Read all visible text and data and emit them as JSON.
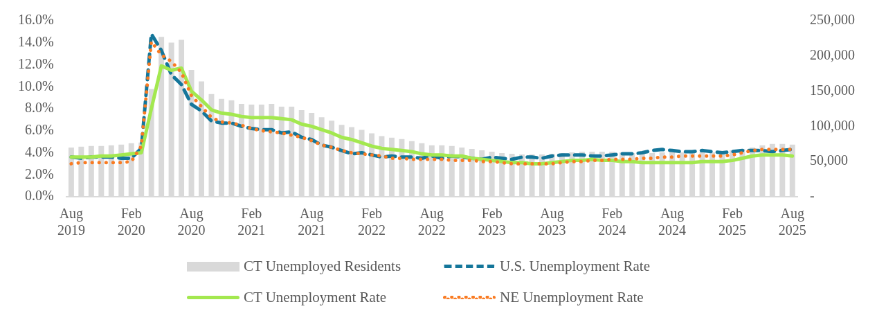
{
  "chart_data": {
    "type": "bar",
    "categories": [
      "Aug 2019",
      null,
      null,
      null,
      null,
      null,
      "Feb 2020",
      null,
      null,
      null,
      null,
      null,
      "Aug 2020",
      null,
      null,
      null,
      null,
      null,
      "Feb 2021",
      null,
      null,
      null,
      null,
      null,
      "Aug 2021",
      null,
      null,
      null,
      null,
      null,
      "Feb 2022",
      null,
      null,
      null,
      null,
      null,
      "Aug 2022",
      null,
      null,
      null,
      null,
      null,
      "Feb 2023",
      null,
      null,
      null,
      null,
      null,
      "Aug 2023",
      null,
      null,
      null,
      null,
      null,
      "Feb 2024",
      null,
      null,
      null,
      null,
      null,
      "Aug 2024",
      null,
      null,
      null,
      null,
      null,
      "Feb 2025",
      null,
      null,
      null,
      null,
      null,
      "Aug 2025"
    ],
    "series": [
      {
        "name": "CT Unemployed Residents",
        "axis": "y2",
        "color": "#d9d9d9",
        "values": [
          70000,
          71000,
          72000,
          72000,
          73000,
          74000,
          76000,
          77000,
          153000,
          227000,
          219000,
          223000,
          180000,
          164000,
          146000,
          139000,
          137000,
          132000,
          131000,
          131000,
          132000,
          128000,
          128000,
          123000,
          119000,
          113000,
          108000,
          102000,
          99000,
          95000,
          90000,
          86000,
          84000,
          82000,
          79000,
          76000,
          73000,
          73000,
          72000,
          70000,
          68000,
          66000,
          64000,
          62000,
          61000,
          60000,
          60000,
          60000,
          61000,
          62000,
          63000,
          64000,
          64000,
          64000,
          64000,
          63000,
          62000,
          62000,
          62000,
          63000,
          63000,
          63000,
          63000,
          63000,
          63000,
          64000,
          66000,
          68000,
          70000,
          73000,
          75000,
          75000,
          74000
        ]
      },
      {
        "name": "U.S. Unemployment Rate",
        "type": "line",
        "axis": "y",
        "color": "#14769a",
        "line_style": "dashed",
        "values": [
          3.6,
          3.5,
          3.6,
          3.6,
          3.6,
          3.5,
          3.5,
          4.4,
          14.8,
          13.3,
          11.1,
          10.2,
          8.4,
          7.8,
          6.9,
          6.7,
          6.7,
          6.4,
          6.2,
          6.1,
          6.1,
          5.8,
          5.9,
          5.4,
          5.2,
          4.7,
          4.5,
          4.2,
          3.9,
          4.0,
          3.8,
          3.6,
          3.7,
          3.6,
          3.6,
          3.5,
          3.7,
          3.5,
          3.7,
          3.6,
          3.5,
          3.4,
          3.6,
          3.5,
          3.4,
          3.6,
          3.6,
          3.5,
          3.7,
          3.8,
          3.8,
          3.8,
          3.7,
          3.7,
          3.8,
          3.9,
          3.9,
          4.0,
          4.2,
          4.3,
          4.2,
          4.1,
          4.1,
          4.2,
          4.1,
          4.0,
          4.1,
          4.2,
          4.2,
          4.2,
          4.1,
          4.2,
          4.3
        ]
      },
      {
        "name": "CT Unemployment Rate",
        "type": "line",
        "axis": "y",
        "color": "#a3e84f",
        "line_style": "solid",
        "values": [
          3.6,
          3.6,
          3.6,
          3.7,
          3.7,
          3.8,
          3.9,
          4.0,
          8.0,
          11.9,
          11.5,
          11.7,
          9.6,
          8.8,
          7.9,
          7.6,
          7.5,
          7.3,
          7.2,
          7.2,
          7.2,
          7.1,
          7.0,
          6.6,
          6.4,
          6.1,
          5.8,
          5.4,
          5.2,
          4.9,
          4.6,
          4.4,
          4.3,
          4.2,
          4.1,
          3.9,
          3.8,
          3.8,
          3.7,
          3.7,
          3.5,
          3.4,
          3.3,
          3.2,
          3.1,
          3.1,
          3.0,
          3.0,
          3.1,
          3.2,
          3.3,
          3.3,
          3.4,
          3.3,
          3.3,
          3.2,
          3.2,
          3.1,
          3.1,
          3.1,
          3.1,
          3.1,
          3.1,
          3.2,
          3.2,
          3.2,
          3.3,
          3.5,
          3.7,
          3.8,
          3.8,
          3.8,
          3.7
        ]
      },
      {
        "name": "NE Unemployment Rate",
        "type": "line",
        "axis": "y",
        "color": "#f97b22",
        "line_style": "dotted",
        "values": [
          3.0,
          3.1,
          3.1,
          3.1,
          3.1,
          3.1,
          3.2,
          4.6,
          14.1,
          12.9,
          12.3,
          11.3,
          9.2,
          8.2,
          7.2,
          6.8,
          6.7,
          6.5,
          6.2,
          6.0,
          5.9,
          5.8,
          5.6,
          5.4,
          5.1,
          4.7,
          4.5,
          4.2,
          4.0,
          3.9,
          3.8,
          3.7,
          3.5,
          3.5,
          3.4,
          3.4,
          3.4,
          3.4,
          3.3,
          3.3,
          3.3,
          3.2,
          3.2,
          3.1,
          3.0,
          3.0,
          3.0,
          3.0,
          3.0,
          3.1,
          3.2,
          3.2,
          3.3,
          3.3,
          3.4,
          3.4,
          3.4,
          3.5,
          3.5,
          3.6,
          3.6,
          3.7,
          3.7,
          3.7,
          3.7,
          3.7,
          3.8,
          4.0,
          4.2,
          4.3,
          4.3,
          4.3,
          4.3
        ]
      }
    ],
    "ylim": [
      0,
      16
    ],
    "yticks": [
      {
        "value": 0,
        "label": "0.0%"
      },
      {
        "value": 2,
        "label": "2.0%"
      },
      {
        "value": 4,
        "label": "4.0%"
      },
      {
        "value": 6,
        "label": "6.0%"
      },
      {
        "value": 8,
        "label": "8.0%"
      },
      {
        "value": 10,
        "label": "10.0%"
      },
      {
        "value": 12,
        "label": "12.0%"
      },
      {
        "value": 14,
        "label": "14.0%"
      },
      {
        "value": 16,
        "label": "16.0%"
      }
    ],
    "y2lim": [
      0,
      250000
    ],
    "y2ticks": [
      {
        "value": 0,
        "label": "-"
      },
      {
        "value": 50000,
        "label": "50,000"
      },
      {
        "value": 100000,
        "label": "100,000"
      },
      {
        "value": 150000,
        "label": "150,000"
      },
      {
        "value": 200000,
        "label": "200,000"
      },
      {
        "value": 250000,
        "label": "250,000"
      }
    ],
    "grid": false,
    "legend": "bottom"
  }
}
